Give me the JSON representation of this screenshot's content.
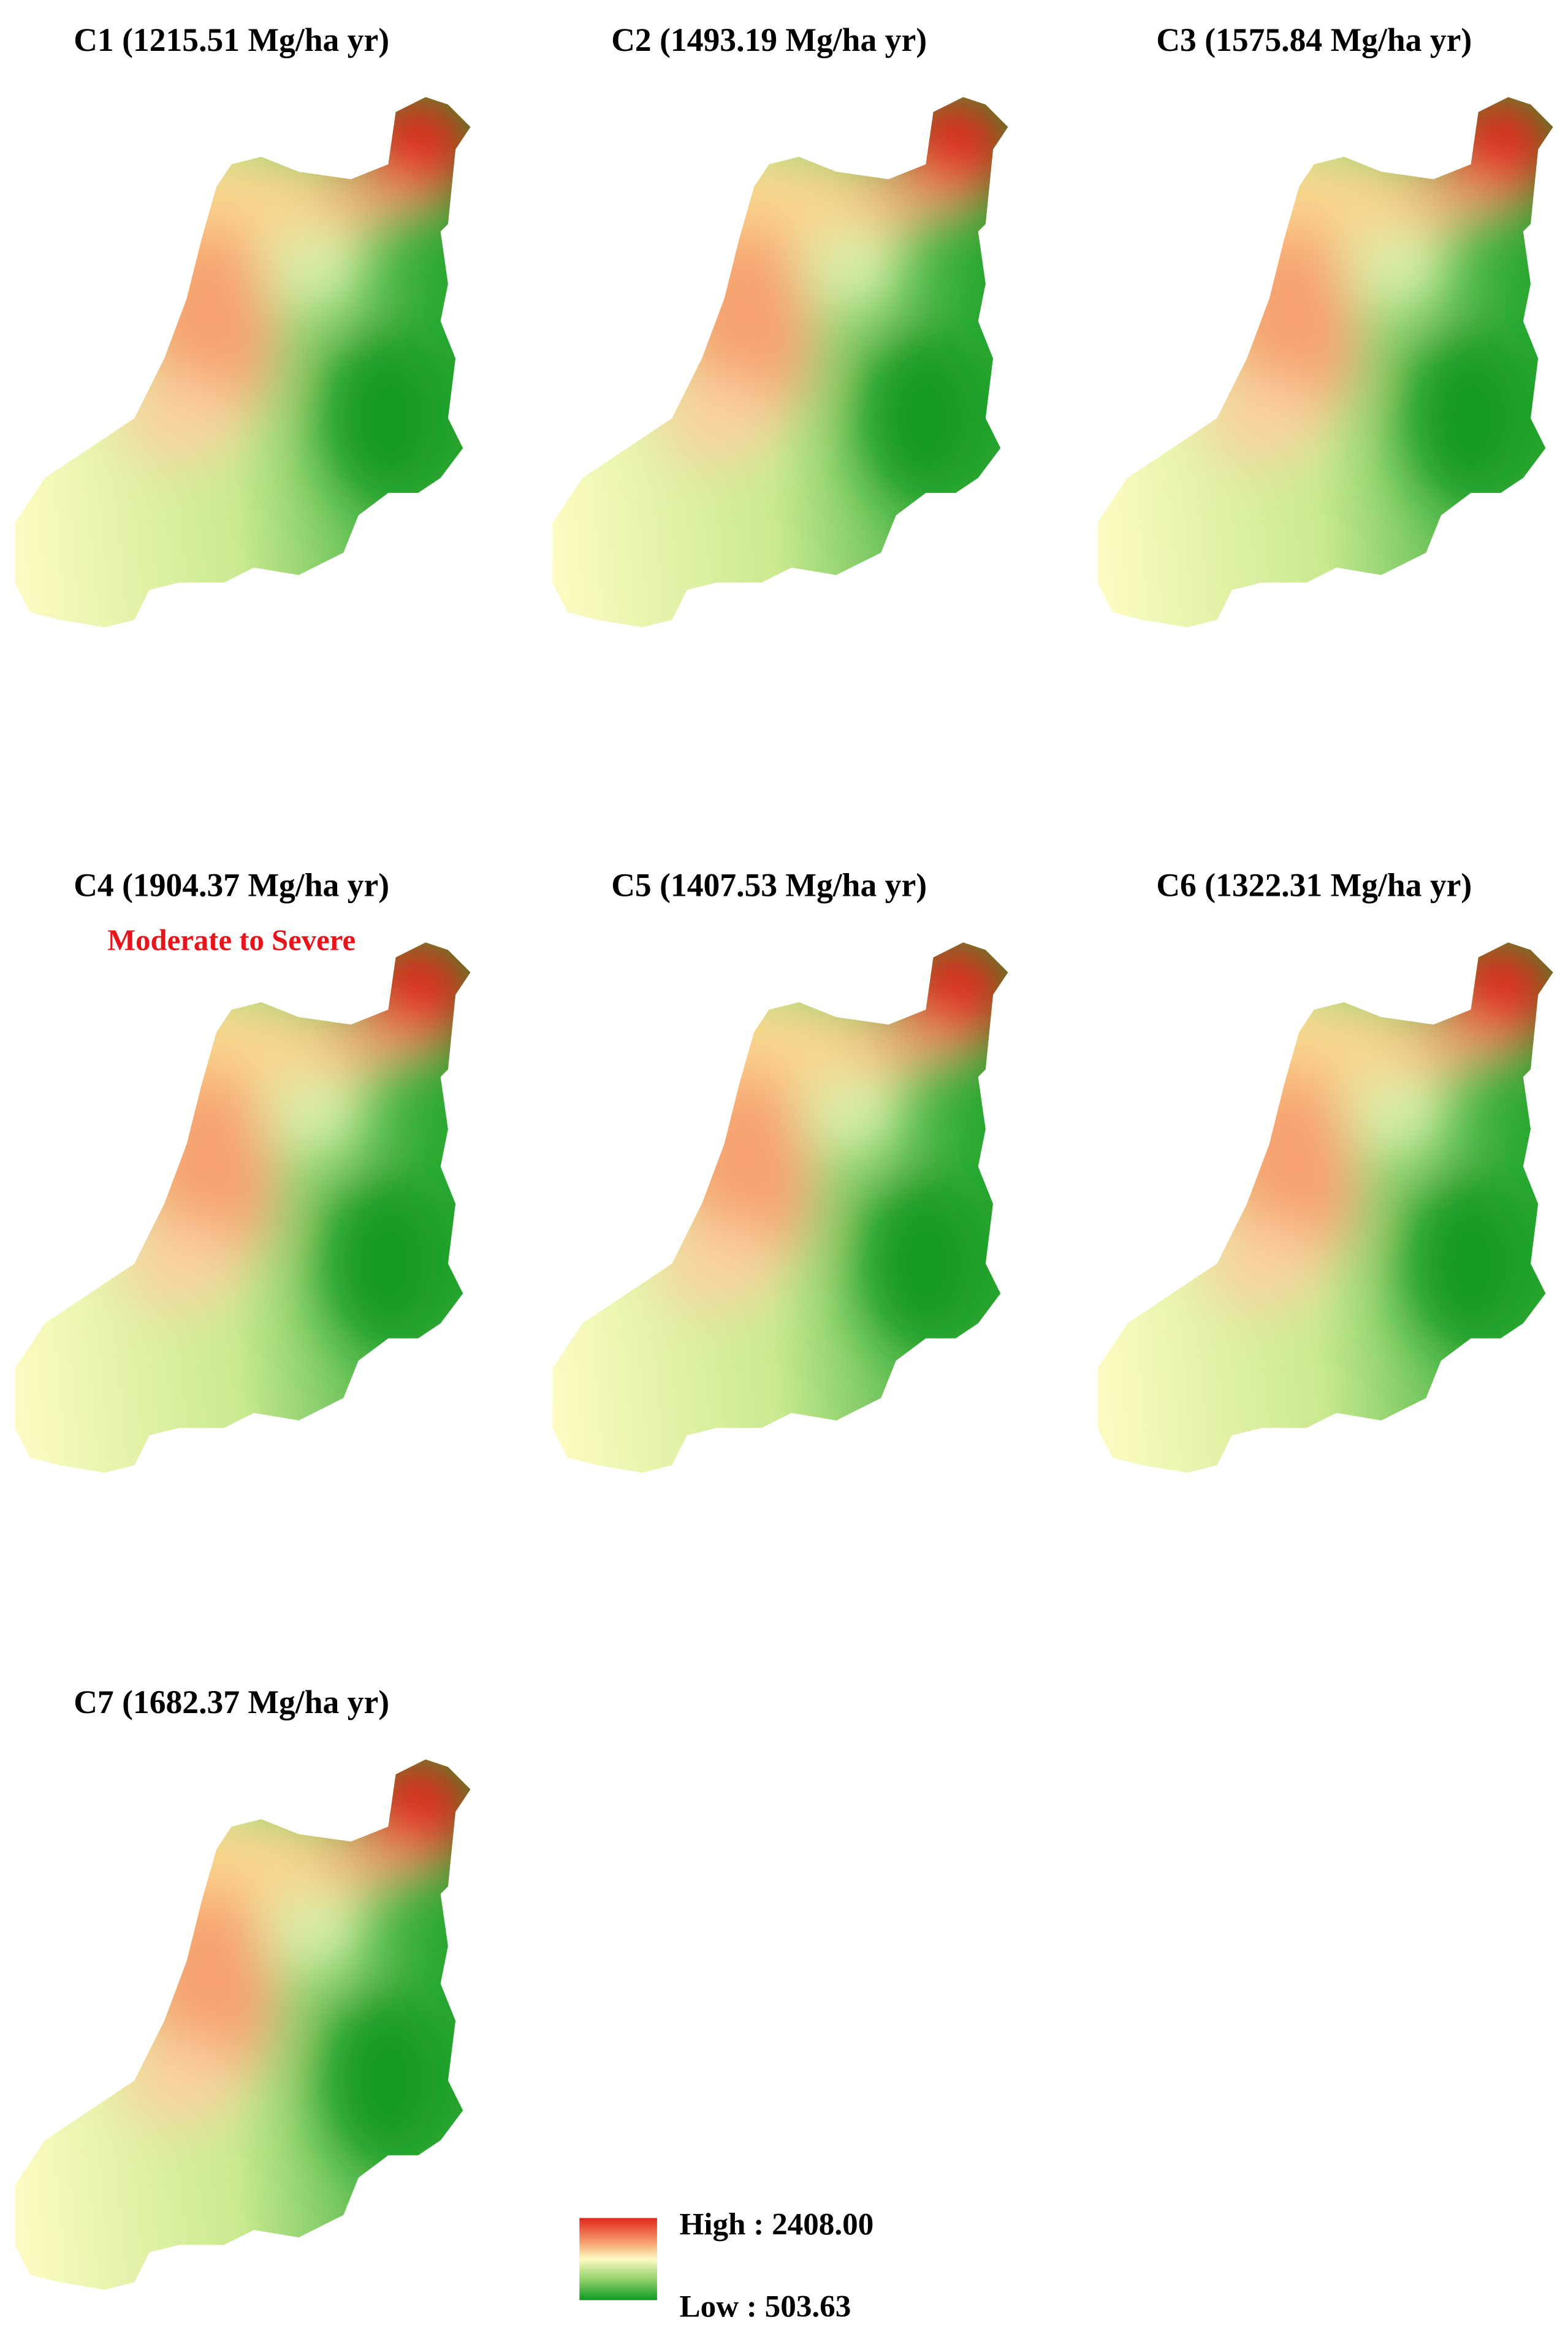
{
  "panels": [
    {
      "title": "C1 (1215.51 Mg/ha yr)"
    },
    {
      "title": "C2 (1493.19 Mg/ha yr)"
    },
    {
      "title": "C3 (1575.84 Mg/ha yr)"
    },
    {
      "title": "C4 (1904.37 Mg/ha yr)",
      "annotation": "Moderate to Severe"
    },
    {
      "title": "C5 (1407.53 Mg/ha yr)"
    },
    {
      "title": "C6 (1322.31 Mg/ha yr)"
    },
    {
      "title": "C7 (1682.37 Mg/ha yr)"
    }
  ],
  "legend": {
    "high": "High : 2408.00",
    "low": "Low : 503.63"
  }
}
